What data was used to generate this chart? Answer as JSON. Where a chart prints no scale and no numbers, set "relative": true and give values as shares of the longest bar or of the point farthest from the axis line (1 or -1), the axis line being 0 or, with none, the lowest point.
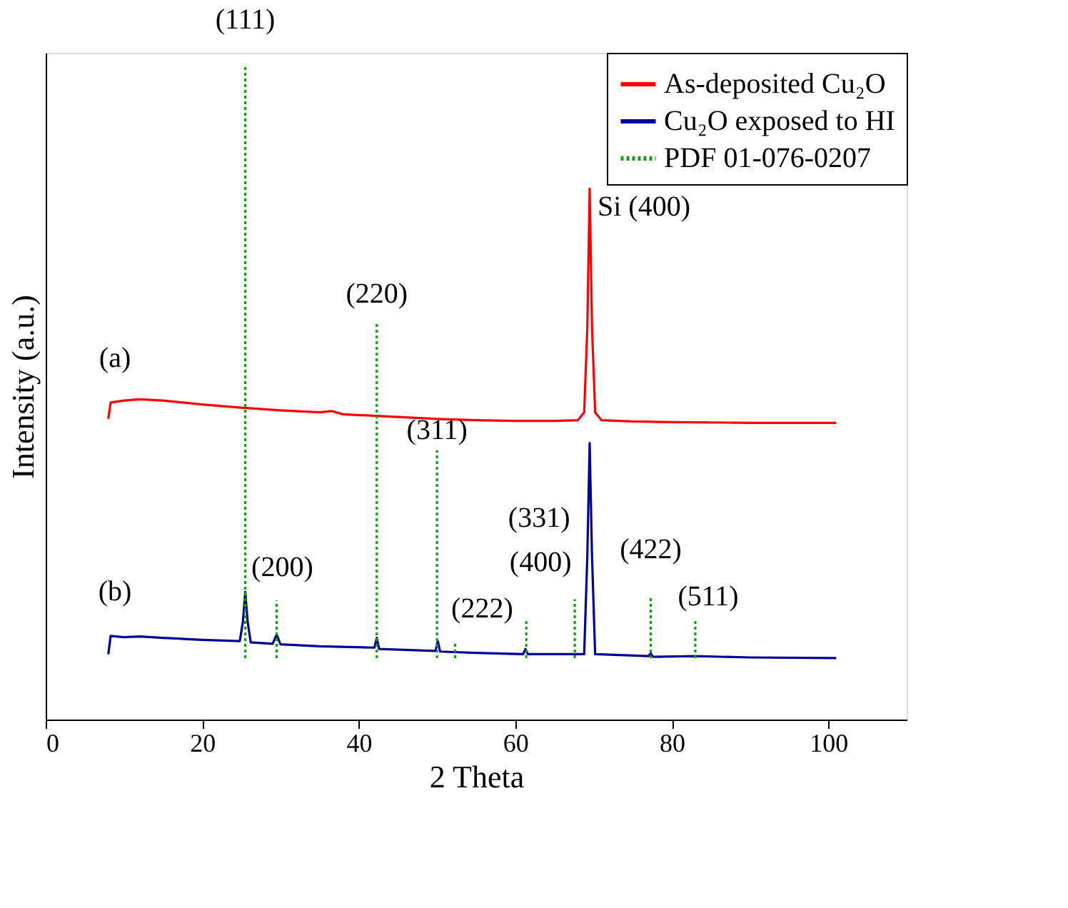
{
  "chart_data": {
    "type": "line",
    "relative": true,
    "xlabel": "2 Theta",
    "ylabel": "Intensity (a.u.)",
    "xlim": [
      0,
      110
    ],
    "xticks": [
      0,
      20,
      40,
      60,
      80,
      100
    ],
    "legend": "top right",
    "grid": false,
    "marker": "none",
    "series": [
      {
        "name": "As-deposited Cu₂O",
        "color": "#ff0000",
        "line_style": "solid",
        "x": [
          8,
          8.3,
          10,
          12,
          15,
          20,
          25,
          30,
          35,
          36.5,
          38,
          45,
          50,
          55,
          60,
          65,
          68,
          68.8,
          69.2,
          69.5,
          69.8,
          70.2,
          71,
          75,
          80,
          90,
          101
        ],
        "values": [
          0.46,
          0.485,
          0.488,
          0.49,
          0.488,
          0.482,
          0.477,
          0.473,
          0.47,
          0.472,
          0.467,
          0.463,
          0.46,
          0.458,
          0.457,
          0.457,
          0.458,
          0.47,
          0.6,
          0.812,
          0.6,
          0.47,
          0.458,
          0.456,
          0.455,
          0.454,
          0.454
        ]
      },
      {
        "name": "Cu₂O exposed to HI",
        "color": "#000099",
        "line_style": "solid",
        "x": [
          8,
          8.3,
          10,
          12,
          15,
          20,
          24.8,
          25.2,
          25.5,
          25.8,
          26.2,
          29,
          29.5,
          30,
          35,
          42,
          42.3,
          42.6,
          49.8,
          50.1,
          50.4,
          55,
          61,
          61.3,
          61.6,
          68.8,
          69.2,
          69.5,
          69.8,
          70.2,
          77,
          77.3,
          77.6,
          83,
          90,
          101
        ],
        "values": [
          0.1,
          0.128,
          0.126,
          0.127,
          0.125,
          0.122,
          0.12,
          0.15,
          0.195,
          0.15,
          0.118,
          0.116,
          0.13,
          0.115,
          0.112,
          0.11,
          0.125,
          0.108,
          0.105,
          0.12,
          0.104,
          0.102,
          0.1,
          0.108,
          0.1,
          0.1,
          0.25,
          0.423,
          0.25,
          0.1,
          0.097,
          0.101,
          0.096,
          0.097,
          0.095,
          0.094
        ]
      },
      {
        "name": "PDF 01-076-0207",
        "color": "#1a9a1a",
        "line_style": "dotted",
        "x": [
          25.5,
          25.5,
          null,
          29.5,
          29.5,
          null,
          42.3,
          42.3,
          null,
          50,
          50,
          null,
          52.3,
          52.3,
          null,
          61.4,
          61.4,
          null,
          67.6,
          67.6,
          null,
          77.3,
          77.3,
          null,
          83,
          83
        ],
        "values": [
          0.094,
          1,
          null,
          0.094,
          0.182,
          null,
          0.094,
          0.605,
          null,
          0.094,
          0.412,
          null,
          0.094,
          0.119,
          null,
          0.094,
          0.153,
          null,
          0.094,
          0.184,
          null,
          0.094,
          0.186,
          null,
          0.094,
          0.153
        ]
      }
    ],
    "annotations": [
      {
        "text": "(111)",
        "x": 25.5,
        "y": 1
      },
      {
        "text": "(220)",
        "x": 42.3,
        "y": 0.605
      },
      {
        "text": "(311)",
        "x": 50,
        "y": 0.412
      },
      {
        "text": "Si (400)",
        "x": 69.5,
        "y": 0.812
      },
      {
        "text": "(200)",
        "x": 29.5,
        "y": 0.182
      },
      {
        "text": "(222)",
        "x": 52.3,
        "y": 0.119
      },
      {
        "text": "(400)",
        "x": 61.4,
        "y": 0.153
      },
      {
        "text": "(331)",
        "x": 67.6,
        "y": 0.184
      },
      {
        "text": "(422)",
        "x": 77.3,
        "y": 0.186
      },
      {
        "text": "(511)",
        "x": 83,
        "y": 0.153
      },
      {
        "text": "(a)",
        "x": 8.3,
        "y": 0.485
      },
      {
        "text": "(b)",
        "x": 8.3,
        "y": 0.128
      }
    ]
  }
}
